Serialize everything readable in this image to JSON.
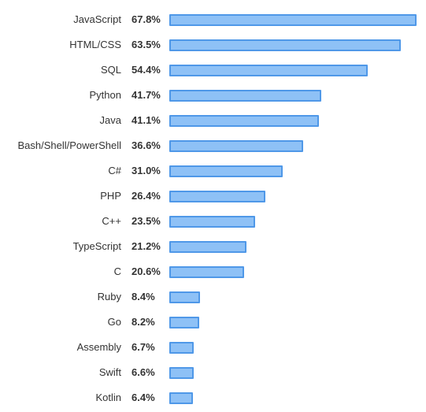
{
  "chart_data": {
    "type": "bar",
    "orientation": "horizontal",
    "bar_color": "#8ec1f6",
    "bar_border_color": "#4f98e8",
    "categories": [
      "JavaScript",
      "HTML/CSS",
      "SQL",
      "Python",
      "Java",
      "Bash/Shell/PowerShell",
      "C#",
      "PHP",
      "C++",
      "TypeScript",
      "C",
      "Ruby",
      "Go",
      "Assembly",
      "Swift",
      "Kotlin"
    ],
    "values": [
      67.8,
      63.5,
      54.4,
      41.7,
      41.1,
      36.6,
      31.0,
      26.4,
      23.5,
      21.2,
      20.6,
      8.4,
      8.2,
      6.7,
      6.6,
      6.4
    ],
    "value_labels": [
      "67.8%",
      "63.5%",
      "54.4%",
      "41.7%",
      "41.1%",
      "36.6%",
      "31.0%",
      "26.4%",
      "23.5%",
      "21.2%",
      "20.6%",
      "8.4%",
      "8.2%",
      "6.7%",
      "6.6%",
      "6.4%"
    ],
    "grid": false,
    "legend": "none"
  }
}
